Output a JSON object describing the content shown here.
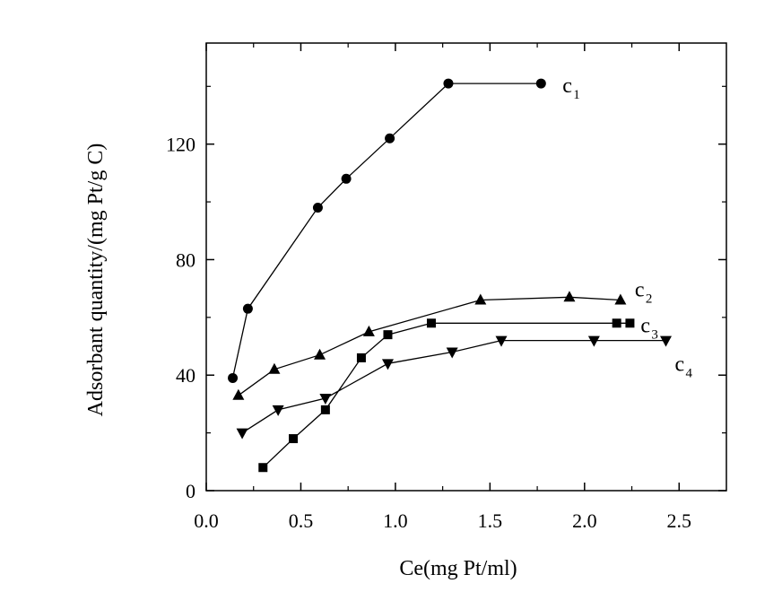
{
  "chart_data": {
    "type": "line",
    "xlabel": "Ce(mg Pt/ml)",
    "ylabel": "Adsorbant quantity/(mg Pt/g C)",
    "xlim": [
      0.0,
      2.75
    ],
    "ylim": [
      0,
      155
    ],
    "x_ticks": [
      "0.0",
      "0.5",
      "1.0",
      "1.5",
      "2.0",
      "2.5"
    ],
    "y_ticks": [
      "0",
      "40",
      "80",
      "120"
    ],
    "grid": false,
    "series": [
      {
        "name": "c1",
        "name_main": "c",
        "name_sub": "1",
        "marker": "circle",
        "x": [
          0.14,
          0.22,
          0.59,
          0.74,
          0.97,
          1.28,
          1.77
        ],
        "y": [
          39,
          63,
          98,
          108,
          122,
          141,
          141
        ]
      },
      {
        "name": "c2",
        "name_main": "c",
        "name_sub": "2",
        "marker": "triangle-up",
        "x": [
          0.17,
          0.36,
          0.6,
          0.86,
          1.45,
          1.92,
          2.19
        ],
        "y": [
          33,
          42,
          47,
          55,
          66,
          67,
          66
        ]
      },
      {
        "name": "c3",
        "name_main": "c",
        "name_sub": "3",
        "marker": "square",
        "x": [
          0.3,
          0.46,
          0.63,
          0.82,
          0.96,
          1.19,
          2.17,
          2.24
        ],
        "y": [
          8,
          18,
          28,
          46,
          54,
          58,
          58,
          58
        ]
      },
      {
        "name": "c4",
        "name_main": "c",
        "name_sub": "4",
        "marker": "triangle-down",
        "x": [
          0.19,
          0.38,
          0.63,
          0.96,
          1.3,
          1.56,
          2.05,
          2.43
        ],
        "y": [
          20,
          28,
          32,
          44,
          48,
          52,
          52,
          52
        ]
      }
    ]
  }
}
